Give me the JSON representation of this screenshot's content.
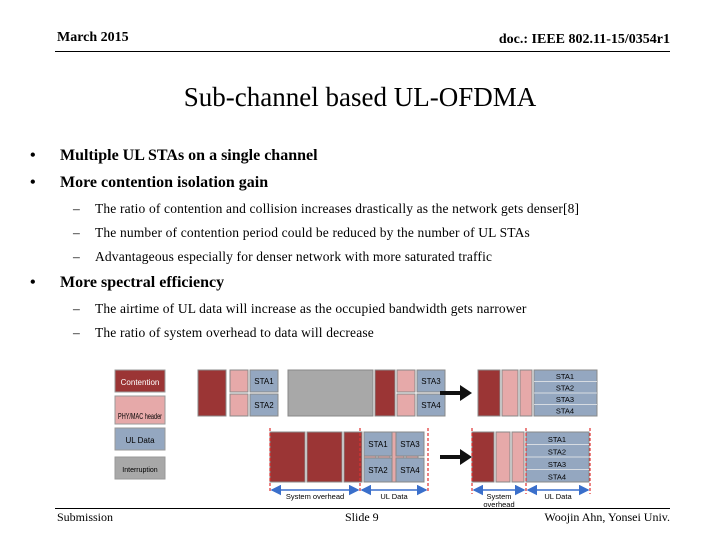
{
  "header": {
    "date": "March 2015",
    "doc_id": "doc.: IEEE 802.11-15/0354r1"
  },
  "title": "Sub-channel based UL-OFDMA",
  "bullets": [
    {
      "text": "Multiple UL STAs on a single channel"
    },
    {
      "text": "More contention isolation gain",
      "sub": [
        "The ratio of contention and collision increases drastically as the network gets denser[8]",
        "The number of contention period could be reduced by the number of UL STAs",
        "Advantageous especially for denser network with more saturated traffic"
      ]
    },
    {
      "text": "More spectral efficiency",
      "sub": [
        "The airtime of UL data will increase as the occupied bandwidth gets narrower",
        "The ratio of system overhead to data will decrease"
      ]
    }
  ],
  "bullet_symbol": "•",
  "dash_symbol": "–",
  "diagram": {
    "legend": [
      "Contention",
      "PHY/MAC header",
      "UL Data",
      "Interruption"
    ],
    "sta_labels": [
      "STA1",
      "STA2",
      "STA3",
      "STA4"
    ],
    "system_overhead": "System overhead",
    "system_overhead_short": [
      "System",
      "overhead"
    ],
    "ul_data": "UL Data",
    "colors": {
      "contention": "#9b3535",
      "header": "#e6a9a9",
      "ul_data": "#94a7c0",
      "interruption": "#a8a8a8",
      "marker": "#e03030"
    }
  },
  "footer": {
    "left": "Submission",
    "center": "Slide 9",
    "right": "Woojin Ahn, Yonsei Univ."
  }
}
